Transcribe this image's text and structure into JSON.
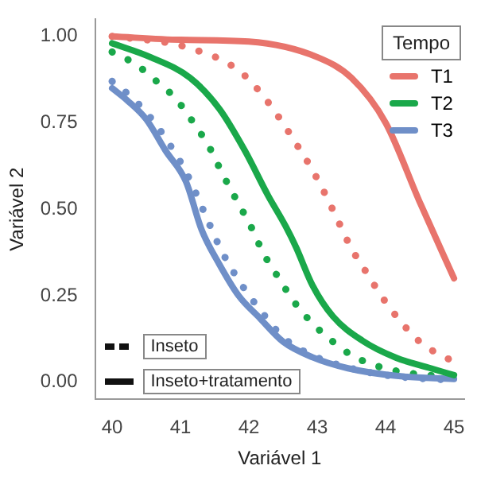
{
  "chart_data": {
    "type": "line",
    "xlabel": "Variável 1",
    "ylabel": "Variável 2",
    "legend_title": "Tempo",
    "legend": "top right",
    "grid": false,
    "marker": "none",
    "xlim": [
      39.75,
      45.15
    ],
    "ylim": [
      -0.05,
      1.05
    ],
    "xticks": [
      40,
      41,
      42,
      43,
      44,
      45
    ],
    "yticks": [
      {
        "value": 0,
        "label": "0.00"
      },
      {
        "value": 0.25,
        "label": "0.25"
      },
      {
        "value": 0.5,
        "label": "0.50"
      },
      {
        "value": 0.75,
        "label": "0.75"
      },
      {
        "value": 1,
        "label": "1.00"
      }
    ],
    "annotations": [
      "Inseto",
      "Inseto+tratamento"
    ],
    "series": [
      {
        "name": "T1",
        "color": "#e8746c",
        "line_style": "solid",
        "x": [
          40,
          41,
          42,
          43,
          43.5,
          44,
          44.5,
          45
        ],
        "values": [
          1.0,
          0.99,
          0.985,
          0.94,
          0.88,
          0.75,
          0.52,
          0.3
        ]
      },
      {
        "name": "T2",
        "color": "#1aa84a",
        "line_style": "solid",
        "x": [
          40,
          40.56,
          41.14,
          41.57,
          41.94,
          42.28,
          42.54,
          42.69,
          42.93,
          43.23,
          43.66,
          44.16,
          44.66,
          45
        ],
        "values": [
          0.98,
          0.94,
          0.88,
          0.79,
          0.67,
          0.54,
          0.45,
          0.39,
          0.28,
          0.19,
          0.12,
          0.07,
          0.04,
          0.02
        ]
      },
      {
        "name": "T3",
        "color": "#6f8fc8",
        "line_style": "solid",
        "x": [
          40,
          40.22,
          40.5,
          40.78,
          41.08,
          41.31,
          41.57,
          41.85,
          42.16,
          42.5,
          42.93,
          43.45,
          44.16,
          45
        ],
        "values": [
          0.85,
          0.815,
          0.76,
          0.67,
          0.58,
          0.44,
          0.34,
          0.25,
          0.185,
          0.117,
          0.072,
          0.04,
          0.018,
          0.009
        ]
      },
      {
        "color": "#e8746c",
        "line_style": "dotted",
        "x": [
          40,
          40.86,
          41.23,
          41.62,
          41.92,
          42.2,
          42.46,
          42.69,
          42.91,
          43.1,
          43.32,
          43.49,
          43.71,
          43.97,
          44.2,
          44.48,
          44.78,
          45
        ],
        "values": [
          1.0,
          0.98,
          0.96,
          0.93,
          0.89,
          0.83,
          0.76,
          0.69,
          0.62,
          0.55,
          0.46,
          0.39,
          0.32,
          0.24,
          0.18,
          0.12,
          0.08,
          0.06
        ]
      },
      {
        "color": "#1aa84a",
        "line_style": "dotted",
        "x": [
          40,
          40.34,
          40.65,
          40.93,
          41.19,
          41.42,
          41.62,
          41.81,
          42.03,
          42.22,
          42.44,
          42.67,
          42.93,
          43.21,
          43.51,
          43.9,
          44.31,
          45
        ],
        "values": [
          0.955,
          0.92,
          0.87,
          0.82,
          0.75,
          0.68,
          0.6,
          0.53,
          0.45,
          0.37,
          0.3,
          0.23,
          0.17,
          0.12,
          0.077,
          0.045,
          0.027,
          0.014
        ]
      },
      {
        "color": "#6f8fc8",
        "line_style": "dotted",
        "x": [
          40,
          40.25,
          40.5,
          40.8,
          41.1,
          41.35,
          41.6,
          41.9,
          42.2,
          42.5,
          42.9,
          43.4,
          44,
          45
        ],
        "values": [
          0.87,
          0.83,
          0.78,
          0.7,
          0.6,
          0.49,
          0.38,
          0.28,
          0.2,
          0.13,
          0.08,
          0.045,
          0.02,
          0.005
        ]
      }
    ]
  }
}
